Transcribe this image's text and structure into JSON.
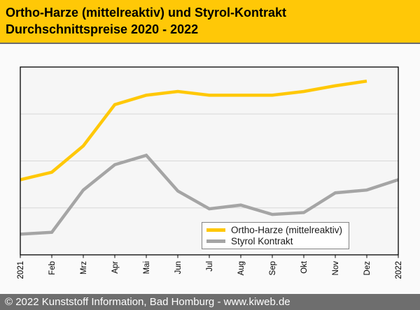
{
  "header": {
    "title_line1": "Ortho-Harze (mittelreaktiv) und Styrol-Kontrakt",
    "title_line2": "Durchschnittspreise 2020 - 2022",
    "bg_color": "#ffc807",
    "separator_color": "#6b6b6b"
  },
  "footer": {
    "text": "© 2022 Kunststoff Information, Bad Homburg - www.kiweb.de",
    "bg_color": "#6e6e6e",
    "text_color": "#ffffff"
  },
  "chart_data": {
    "type": "line",
    "title": "Ortho-Harze (mittelreaktiv) und Styrol-Kontrakt Durchschnittspreise 2020 - 2022",
    "xlabel": "",
    "ylabel": "",
    "categories": [
      "2021",
      "Feb",
      "Mrz",
      "Apr",
      "Mai",
      "Jun",
      "Jul",
      "Aug",
      "Sep",
      "Okt",
      "Nov",
      "Dez",
      "2022"
    ],
    "series": [
      {
        "name": "Ortho-Harze (mittelreaktiv)",
        "color": "#ffc807",
        "values": [
          40,
          44,
          58,
          80,
          85,
          87,
          85,
          85,
          85,
          87,
          90,
          92.5
        ]
      },
      {
        "name": "Styrol Kontrakt",
        "color": "#a5a5a5",
        "values": [
          11,
          12,
          34.5,
          48,
          53,
          34,
          24.5,
          26.5,
          21.5,
          22.5,
          33,
          34.5,
          40
        ]
      }
    ],
    "ylim": [
      0,
      100
    ],
    "y_axis_labels_visible": false,
    "value_scale_note": "source chart has no y-axis labels; values are a relative index, 0 = plot bottom, 100 = plot top",
    "gridlines_at": [
      25,
      50,
      75
    ],
    "grid": "horizontal",
    "legend_position": "inside-lower-right",
    "plot_bg_color": "#f6f6f6",
    "grid_color": "#d8d8d8",
    "border_color": "#000000"
  }
}
